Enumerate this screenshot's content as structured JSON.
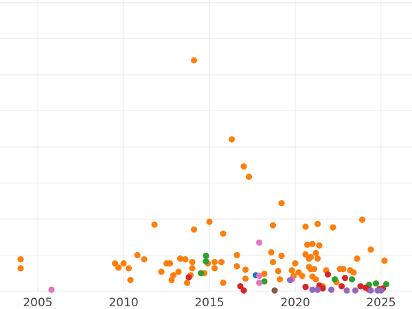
{
  "chart_data": {
    "type": "scatter",
    "title": "",
    "xlabel": "",
    "ylabel": "",
    "xlim": [
      2002.8,
      2026.8
    ],
    "ylim": [
      0,
      420
    ],
    "x_ticks": [
      2005,
      2010,
      2015,
      2020,
      2025
    ],
    "x_tick_labels": [
      "2005",
      "2010",
      "2015",
      "2020",
      "2025"
    ],
    "y_grid": [
      0,
      52,
      104,
      156,
      208,
      260,
      312,
      364,
      416
    ],
    "grid": true,
    "legend": null,
    "series": [
      {
        "color": "#ff7f0e",
        "points": [
          [
            2004.0,
            46
          ],
          [
            2004.0,
            33
          ],
          [
            2009.5,
            40
          ],
          [
            2009.7,
            34
          ],
          [
            2010.0,
            40
          ],
          [
            2010.3,
            33
          ],
          [
            2010.4,
            16
          ],
          [
            2010.8,
            52
          ],
          [
            2011.2,
            46
          ],
          [
            2011.8,
            96
          ],
          [
            2012.2,
            28
          ],
          [
            2012.5,
            40
          ],
          [
            2012.7,
            40
          ],
          [
            2012.8,
            16
          ],
          [
            2012.9,
            23
          ],
          [
            2013.2,
            28
          ],
          [
            2013.3,
            47
          ],
          [
            2013.6,
            46
          ],
          [
            2013.7,
            12
          ],
          [
            2013.9,
            23
          ],
          [
            2014.0,
            33
          ],
          [
            2014.0,
            42
          ],
          [
            2014.1,
            89
          ],
          [
            2014.1,
            333
          ],
          [
            2014.7,
            26
          ],
          [
            2014.9,
            40
          ],
          [
            2015.0,
            100
          ],
          [
            2015.3,
            42
          ],
          [
            2015.3,
            33
          ],
          [
            2015.7,
            42
          ],
          [
            2015.8,
            12
          ],
          [
            2015.8,
            83
          ],
          [
            2016.3,
            219
          ],
          [
            2016.6,
            52
          ],
          [
            2016.6,
            36
          ],
          [
            2017.0,
            180
          ],
          [
            2017.1,
            31
          ],
          [
            2017.1,
            18
          ],
          [
            2017.3,
            165
          ],
          [
            2018.2,
            25
          ],
          [
            2018.6,
            56
          ],
          [
            2018.7,
            42
          ],
          [
            2018.7,
            95
          ],
          [
            2019.0,
            29
          ],
          [
            2019.1,
            17
          ],
          [
            2019.2,
            51
          ],
          [
            2019.2,
            127
          ],
          [
            2019.8,
            30
          ],
          [
            2019.9,
            22
          ],
          [
            2020.0,
            40
          ],
          [
            2020.2,
            27
          ],
          [
            2020.4,
            22
          ],
          [
            2020.6,
            93
          ],
          [
            2020.6,
            53
          ],
          [
            2020.7,
            67
          ],
          [
            2020.8,
            47
          ],
          [
            2020.8,
            35
          ],
          [
            2020.9,
            32
          ],
          [
            2020.9,
            49
          ],
          [
            2021.0,
            21
          ],
          [
            2021.0,
            68
          ],
          [
            2021.1,
            32
          ],
          [
            2021.2,
            55
          ],
          [
            2021.2,
            17
          ],
          [
            2021.3,
            97
          ],
          [
            2021.3,
            47
          ],
          [
            2021.4,
            66
          ],
          [
            2021.6,
            7
          ],
          [
            2021.8,
            30
          ],
          [
            2022.2,
            92
          ],
          [
            2022.4,
            13
          ],
          [
            2022.6,
            32
          ],
          [
            2022.8,
            32
          ],
          [
            2023.2,
            30
          ],
          [
            2023.4,
            27
          ],
          [
            2023.6,
            47
          ],
          [
            2023.9,
            103
          ],
          [
            2024.4,
            60
          ],
          [
            2025.2,
            44
          ]
        ]
      },
      {
        "color": "#2ca02c",
        "points": [
          [
            2014.5,
            26
          ],
          [
            2014.8,
            51
          ],
          [
            2014.8,
            43
          ],
          [
            2018.2,
            14
          ],
          [
            2022.3,
            17
          ],
          [
            2023.3,
            17
          ],
          [
            2024.3,
            9
          ],
          [
            2024.7,
            11
          ],
          [
            2025.3,
            10
          ]
        ]
      },
      {
        "color": "#d62728",
        "points": [
          [
            2013.8,
            20
          ],
          [
            2016.8,
            7
          ],
          [
            2017.0,
            1
          ],
          [
            2020.6,
            6
          ],
          [
            2021.4,
            8
          ],
          [
            2021.6,
            4
          ],
          [
            2021.9,
            24
          ],
          [
            2022.7,
            7
          ],
          [
            2022.9,
            19
          ],
          [
            2023.8,
            7
          ],
          [
            2024.1,
            5
          ],
          [
            2024.3,
            2
          ],
          [
            2024.9,
            3
          ],
          [
            2025.1,
            4
          ]
        ]
      },
      {
        "color": "#1f77b4",
        "points": [
          [
            2017.7,
            23
          ]
        ]
      },
      {
        "color": "#e377c2",
        "points": [
          [
            2005.8,
            2
          ],
          [
            2017.9,
            70
          ],
          [
            2017.9,
            22
          ],
          [
            2017.9,
            12
          ],
          [
            2019.8,
            17
          ]
        ]
      },
      {
        "color": "#9467bd",
        "points": [
          [
            2019.7,
            16
          ],
          [
            2021.0,
            2
          ],
          [
            2021.3,
            2
          ],
          [
            2022.1,
            2
          ],
          [
            2023.0,
            0
          ],
          [
            2023.5,
            0
          ],
          [
            2024.4,
            0
          ],
          [
            2024.8,
            0
          ],
          [
            2025.0,
            0
          ]
        ]
      },
      {
        "color": "#8c564b",
        "points": [
          [
            2018.8,
            0
          ]
        ]
      }
    ]
  }
}
